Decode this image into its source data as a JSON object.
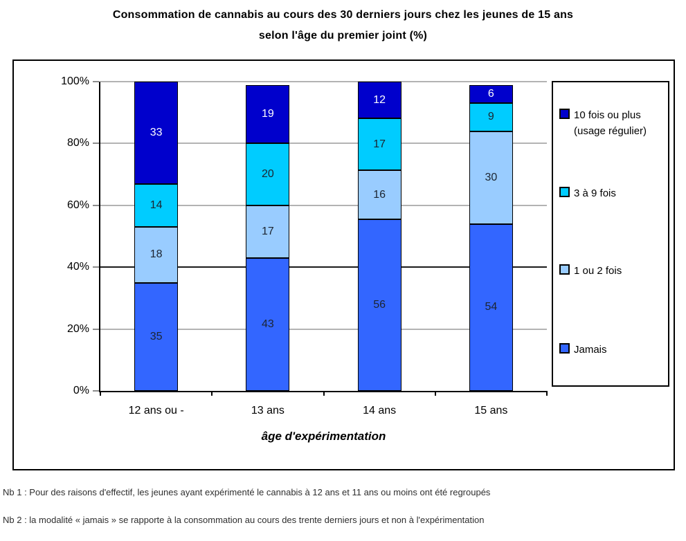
{
  "chart_data": {
    "type": "bar",
    "stacked": true,
    "stack_unit": "percent",
    "title_lines": [
      "Consommation de cannabis au cours des 30 derniers jours chez les jeunes de 15 ans",
      "selon l'âge du premier joint (%)"
    ],
    "categories": [
      "12 ans ou -",
      "13 ans",
      "14 ans",
      "15 ans"
    ],
    "series": [
      {
        "name": "Jamais",
        "values": [
          35,
          43,
          56,
          54
        ],
        "color": "#3366FF",
        "label_color": "#1c2430"
      },
      {
        "name": "1 ou 2 fois",
        "values": [
          18,
          17,
          16,
          30
        ],
        "color": "#99CCFF",
        "label_color": "#1c2430"
      },
      {
        "name": "3 à 9 fois",
        "values": [
          14,
          20,
          17,
          9
        ],
        "color": "#00CCFF",
        "label_color": "#1c2430"
      },
      {
        "name": "10 fois ou plus (usage régulier)",
        "values": [
          33,
          19,
          12,
          6
        ],
        "color": "#0000CC",
        "label_color": "#FFFFFF"
      }
    ],
    "xlabel": "âge d'expérimentation",
    "ylabel": "",
    "ylim": [
      0,
      100
    ],
    "yticks": [
      0,
      20,
      40,
      60,
      80,
      100
    ],
    "ytick_labels": [
      "0%",
      "20%",
      "40%",
      "60%",
      "80%",
      "100%"
    ],
    "grid": true,
    "emphasized_gridline": 40,
    "value_labels": true,
    "legend_position": "right"
  },
  "legend": {
    "items": [
      {
        "label": "10 fois ou plus\n(usage régulier)",
        "color": "#0000CC"
      },
      {
        "label": "3 à 9 fois",
        "color": "#00CCFF"
      },
      {
        "label": "1 ou 2 fois",
        "color": "#99CCFF"
      },
      {
        "label": "Jamais",
        "color": "#3366FF"
      }
    ]
  },
  "footnotes": [
    "Nb 1 : Pour des raisons d'effectif, les jeunes ayant expérimenté le cannabis à 12 ans et 11 ans ou moins ont été regroupés",
    "Nb 2 : la modalité « jamais » se rapporte à la consommation au cours des trente derniers jours et non à l'expérimentation"
  ]
}
